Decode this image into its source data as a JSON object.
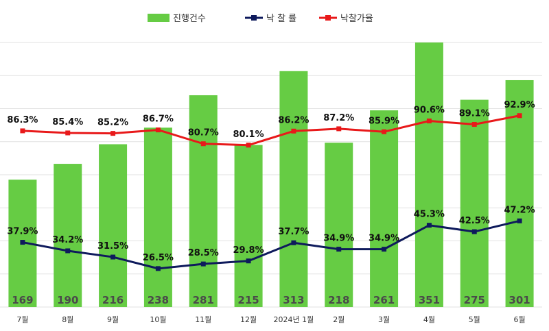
{
  "chart_data": {
    "type": "bar",
    "categories": [
      "7월",
      "8월",
      "9월",
      "10월",
      "11월",
      "12월",
      "2024년 1월",
      "2월",
      "3월",
      "4월",
      "5월",
      "6월"
    ],
    "series": [
      {
        "name": "진행건수",
        "type": "bar",
        "color": "#66cc44",
        "values": [
          169,
          190,
          216,
          238,
          281,
          215,
          313,
          218,
          261,
          351,
          275,
          301
        ]
      },
      {
        "name": "낙 찰 률",
        "type": "line",
        "color": "#0e1a5c",
        "unit": "%",
        "values": [
          37.9,
          34.2,
          31.5,
          26.5,
          28.5,
          29.8,
          37.7,
          34.9,
          34.9,
          45.3,
          42.5,
          47.2
        ]
      },
      {
        "name": "낙찰가율",
        "type": "line",
        "color": "#e8191a",
        "unit": "%",
        "values": [
          86.3,
          85.4,
          85.2,
          86.7,
          80.7,
          80.1,
          86.2,
          87.2,
          85.9,
          90.6,
          89.1,
          92.9
        ]
      }
    ],
    "title": "",
    "xlabel": "",
    "ylabel": "",
    "ylim_bars": [
      0,
      351
    ],
    "grid": true,
    "legend_position": "top-center"
  }
}
